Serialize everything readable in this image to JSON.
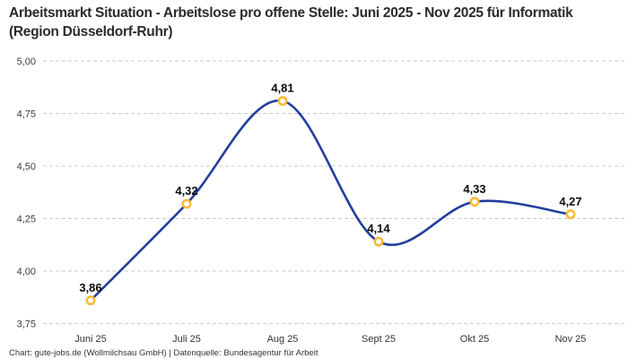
{
  "header": {
    "title": "Arbeitsmarkt Situation - Arbeitslose pro offene Stelle: Juni 2025 - Nov 2025 für Informatik (Region Düsseldorf-Ruhr)"
  },
  "footer": {
    "credit": "Chart: gute-jobs.de (Wollmilchsau GmbH) | Datenquelle: Bundesagentur für Arbeit"
  },
  "chart_data": {
    "type": "line",
    "title": "Arbeitsmarkt Situation - Arbeitslose pro offene Stelle: Juni 2025 - Nov 2025 für Informatik (Region Düsseldorf-Ruhr)",
    "categories": [
      "Juni 25",
      "Juli 25",
      "Aug 25",
      "Sept 25",
      "Okt 25",
      "Nov 25"
    ],
    "values": [
      3.86,
      4.32,
      4.81,
      4.14,
      4.33,
      4.27
    ],
    "point_labels": [
      "3,86",
      "4,32",
      "4,81",
      "4,14",
      "4,33",
      "4,27"
    ],
    "ytick_values": [
      5.0,
      4.75,
      4.5,
      4.25,
      4.0,
      3.75
    ],
    "ytick_labels": [
      "5,00",
      "4,75",
      "4,50",
      "4,25",
      "4,00",
      "3,75"
    ],
    "ylim": [
      3.75,
      5.0
    ],
    "xlabel": "",
    "ylabel": "",
    "decimal_separator": "comma",
    "legend": "none",
    "grid": "horizontal-dashed",
    "line_style": "smooth-spline",
    "colors": {
      "line": "#233E9B",
      "marker_ring": "#F9BC38",
      "marker_fill": "#FFFFFF",
      "grid": "#CBCBCB",
      "ytick_text": "#3B3B3B",
      "xtick_text": "#333333",
      "point_label_text": "#0A0A0A",
      "background": "#FFFFFF"
    }
  }
}
